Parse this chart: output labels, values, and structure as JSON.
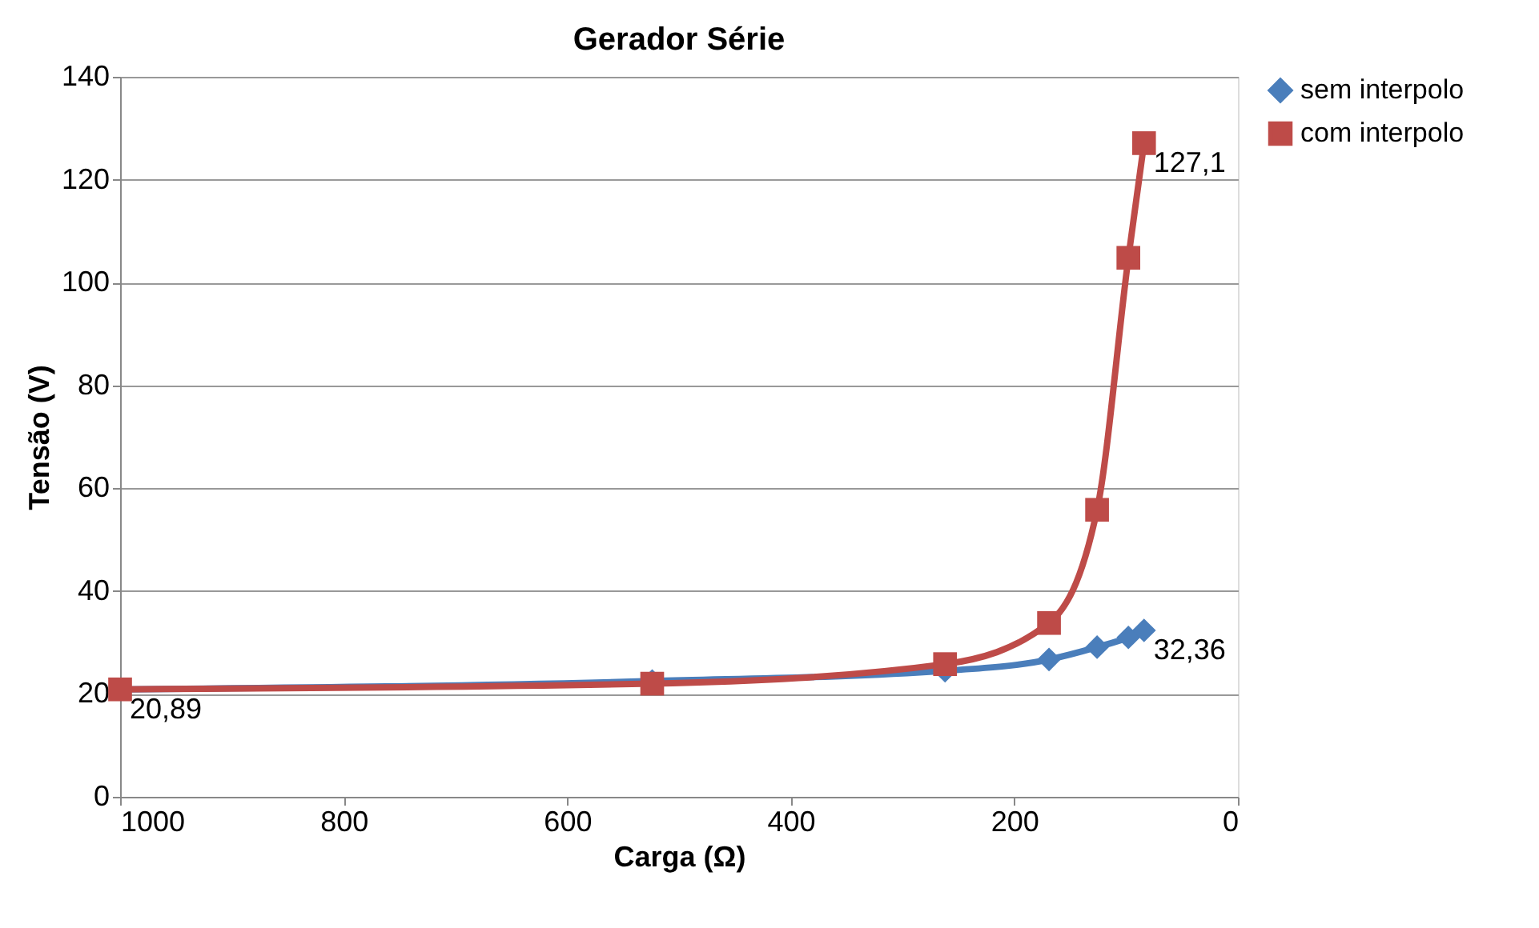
{
  "chart_data": {
    "type": "line",
    "title": "Gerador Série",
    "xlabel": "Carga (Ω)",
    "ylabel": "Tensão (V)",
    "xlim": [
      1000,
      0
    ],
    "xticks": [
      1000,
      800,
      600,
      400,
      200,
      0
    ],
    "ylim": [
      0,
      140
    ],
    "yticks": [
      0,
      20,
      40,
      60,
      80,
      100,
      120,
      140
    ],
    "grid": "y",
    "legend": "right",
    "line_style": "solid",
    "x": [
      1000,
      524,
      262,
      169,
      126,
      98,
      84
    ],
    "series": [
      {
        "name": "sem interpolo",
        "color": "#4a7ebb",
        "marker": "diamond",
        "values": [
          20.89,
          22.5,
          24.5,
          26.7,
          29.1,
          31,
          32.36
        ],
        "value_labels": [
          "20,89",
          null,
          null,
          null,
          null,
          null,
          "32,36"
        ]
      },
      {
        "name": "com interpolo",
        "color": "#be4b48",
        "marker": "square",
        "values": [
          20.89,
          22.0,
          25.8,
          33.8,
          55.8,
          104.8,
          127.1
        ],
        "value_labels": [
          null,
          null,
          null,
          null,
          null,
          null,
          "127,1"
        ]
      }
    ]
  }
}
